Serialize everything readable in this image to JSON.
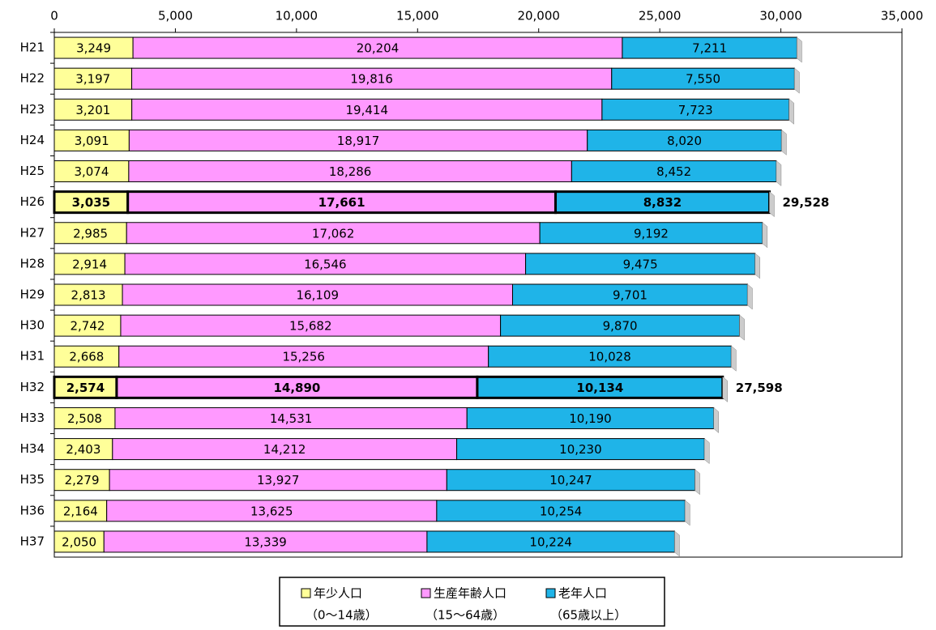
{
  "chart_data": {
    "type": "stacked-bar-horizontal",
    "categories": [
      "H21",
      "H22",
      "H23",
      "H24",
      "H25",
      "H26",
      "H27",
      "H28",
      "H29",
      "H30",
      "H31",
      "H32",
      "H33",
      "H34",
      "H35",
      "H36",
      "H37"
    ],
    "series": [
      {
        "name": "年少人口",
        "age_range": "（0〜14歳）",
        "color": "#ffff99",
        "label_color": "#000000",
        "values": [
          3249,
          3197,
          3201,
          3091,
          3074,
          3035,
          2985,
          2914,
          2813,
          2742,
          2668,
          2574,
          2508,
          2403,
          2279,
          2164,
          2050
        ],
        "value_labels": [
          "3,249",
          "3,197",
          "3,201",
          "3,091",
          "3,074",
          "3,035",
          "2,985",
          "2,914",
          "2,813",
          "2,742",
          "2,668",
          "2,574",
          "2,508",
          "2,403",
          "2,279",
          "2,164",
          "2,050"
        ]
      },
      {
        "name": "生産年齢人口",
        "age_range": "（15〜64歳）",
        "color": "#ff99ff",
        "label_color": "#000000",
        "values": [
          20204,
          19816,
          19414,
          18917,
          18286,
          17661,
          17062,
          16546,
          16109,
          15682,
          15256,
          14890,
          14531,
          14212,
          13927,
          13625,
          13339
        ],
        "value_labels": [
          "20,204",
          "19,816",
          "19,414",
          "18,917",
          "18,286",
          "17,661",
          "17,062",
          "16,546",
          "16,109",
          "15,682",
          "15,256",
          "14,890",
          "14,531",
          "14,212",
          "13,927",
          "13,625",
          "13,339"
        ]
      },
      {
        "name": "老年人口",
        "age_range": "（65歳以上）",
        "color": "#1fb4e8",
        "label_color": "#ffffff",
        "values": [
          7211,
          7550,
          7723,
          8020,
          8452,
          8832,
          9192,
          9475,
          9701,
          9870,
          10028,
          10134,
          10190,
          10230,
          10247,
          10254,
          10224
        ],
        "value_labels": [
          "7,211",
          "7,550",
          "7,723",
          "8,020",
          "8,452",
          "8,832",
          "9,192",
          "9,475",
          "9,701",
          "9,870",
          "10,028",
          "10,134",
          "10,190",
          "10,230",
          "10,247",
          "10,254",
          "10,224"
        ]
      }
    ],
    "xlim": [
      0,
      35000
    ],
    "xticks": [
      0,
      {
        "value": 5000,
        "label": "5,000"
      },
      {
        "value": 10000,
        "label": "10,000"
      },
      {
        "value": 15000,
        "label": "15,000"
      },
      {
        "value": 20000,
        "label": "20,000"
      },
      {
        "value": 25000,
        "label": "25,000"
      },
      {
        "value": 30000,
        "label": "30,000"
      },
      {
        "value": 35000,
        "label": "35,000"
      }
    ],
    "highlight": [
      "H26",
      "H32"
    ],
    "annotations": [
      {
        "category": "H26",
        "value": 29528,
        "label": "29,528"
      },
      {
        "category": "H32",
        "value": 27598,
        "label": "27,598"
      }
    ],
    "legend": "bottom"
  }
}
